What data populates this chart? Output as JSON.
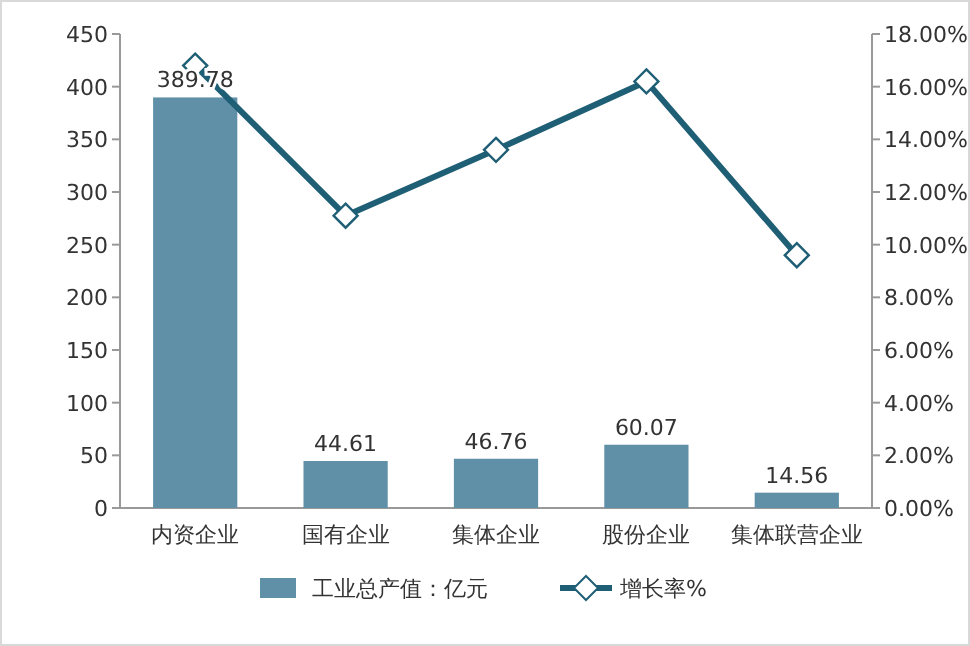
{
  "chart_data": {
    "type": "bar",
    "categories": [
      "内资企业",
      "国有企业",
      "集体企业",
      "股份企业",
      "集体联营企业"
    ],
    "series": [
      {
        "name": "工业总产值：亿元",
        "color": "#6090a8",
        "values": [
          389.78,
          44.61,
          46.76,
          60.07,
          14.56
        ],
        "value_labels": [
          "389.78",
          "44.61",
          "46.76",
          "60.07",
          "14.56"
        ]
      },
      {
        "name": "增长率%",
        "type": "line",
        "axis": "y2",
        "color": "#1f5f75",
        "marker": "diamond",
        "values": [
          16.8,
          11.1,
          13.6,
          16.2,
          9.6
        ]
      }
    ],
    "ylim": [
      0,
      450
    ],
    "yticks": [
      0,
      50,
      100,
      150,
      200,
      250,
      300,
      350,
      400,
      450
    ],
    "y2lim": [
      0,
      18
    ],
    "y2ticks": [
      {
        "value": 0,
        "label": "0.00%"
      },
      {
        "value": 2,
        "label": "2.00%"
      },
      {
        "value": 4,
        "label": "4.00%"
      },
      {
        "value": 6,
        "label": "6.00%"
      },
      {
        "value": 8,
        "label": "8.00%"
      },
      {
        "value": 10,
        "label": "10.00%"
      },
      {
        "value": 12,
        "label": "12.00%"
      },
      {
        "value": 14,
        "label": "14.00%"
      },
      {
        "value": 16,
        "label": "16.00%"
      },
      {
        "value": 18,
        "label": "18.00%"
      }
    ],
    "legend": "bottom",
    "grid": false
  }
}
